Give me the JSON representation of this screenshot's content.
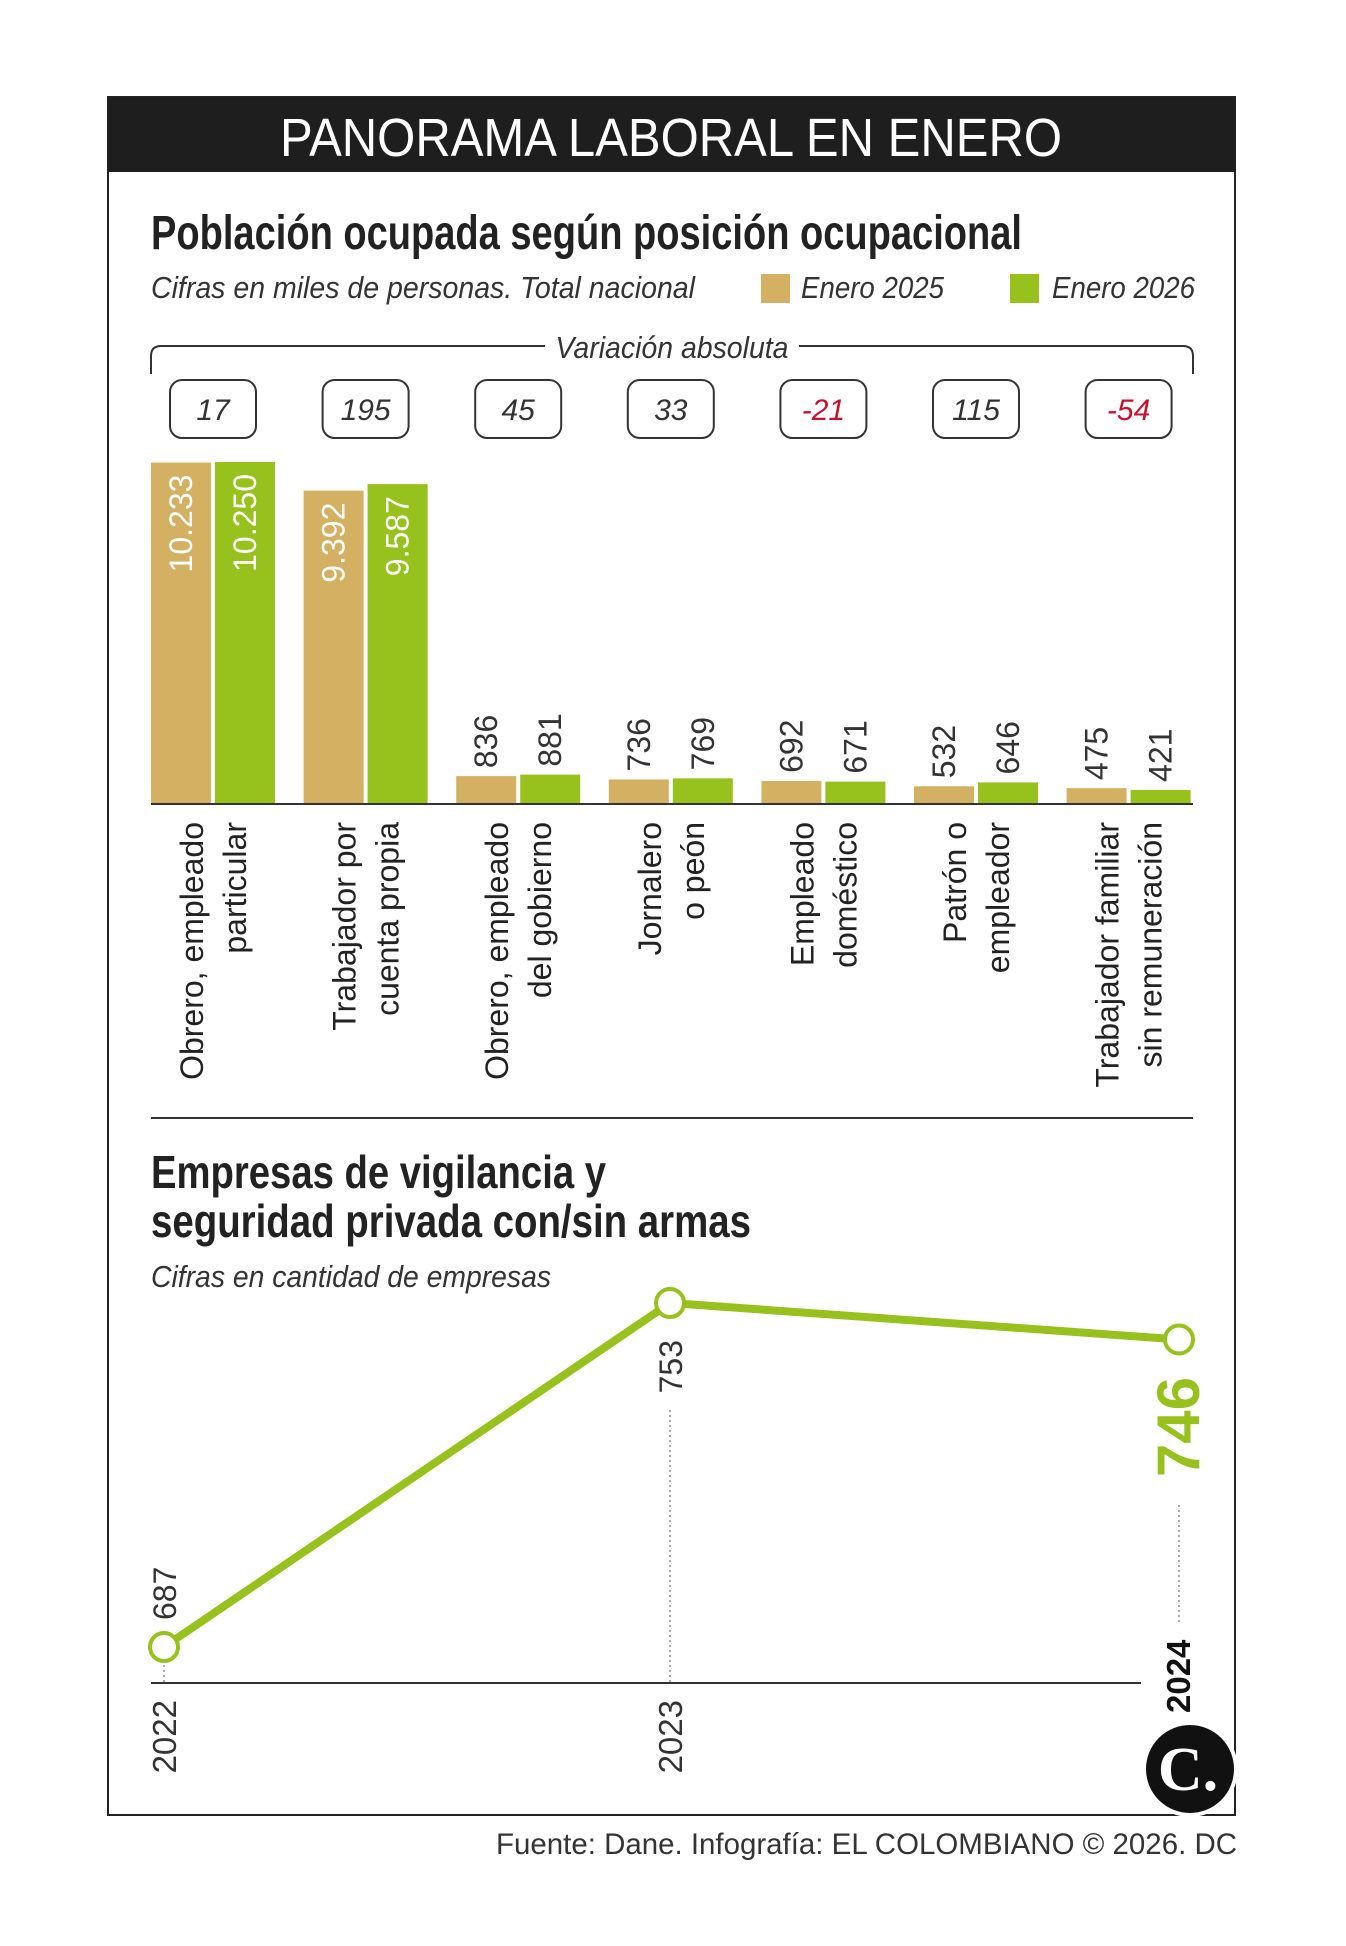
{
  "title": "PANORAMA LABORAL EN ENERO",
  "colors": {
    "enero_2025": "#d3b062",
    "enero_2026": "#97c21e",
    "negative": "#c8102e",
    "header_bg": "#1e1e1e"
  },
  "chart_data": [
    {
      "type": "bar",
      "title": "Población ocupada según posición ocupacional",
      "subtitle": "Cifras en miles de personas. Total nacional",
      "legend_position": "top-right",
      "variation_label": "Variación absoluta",
      "categories": [
        [
          "Obrero, empleado",
          "particular"
        ],
        [
          "Trabajador por",
          "cuenta propia"
        ],
        [
          "Obrero, empleado",
          "del gobierno"
        ],
        [
          "Jornalero",
          "o peón"
        ],
        [
          "Empleado",
          "doméstico"
        ],
        [
          "Patrón o",
          "empleador"
        ],
        [
          "Trabajador familiar",
          "sin remuneración"
        ]
      ],
      "series": [
        {
          "name": "Enero 2025",
          "values": [
            10233,
            9392,
            836,
            736,
            692,
            532,
            475
          ],
          "labels": [
            "10.233",
            "9.392",
            "836",
            "736",
            "692",
            "532",
            "475"
          ]
        },
        {
          "name": "Enero 2026",
          "values": [
            10250,
            9587,
            881,
            769,
            671,
            646,
            421
          ],
          "labels": [
            "10.250",
            "9.587",
            "881",
            "769",
            "671",
            "646",
            "421"
          ]
        }
      ],
      "variation": [
        "17",
        "195",
        "45",
        "33",
        "-21",
        "115",
        "-54"
      ]
    },
    {
      "type": "line",
      "title_lines": [
        "Empresas de vigilancia y",
        "seguridad privada con/sin armas"
      ],
      "subtitle": "Cifras en cantidad de empresas",
      "x": [
        "2022",
        "2023",
        "2024"
      ],
      "values": [
        687,
        753,
        746
      ],
      "labels": [
        "687",
        "753",
        "746"
      ]
    }
  ],
  "logo": {
    "text": "C."
  },
  "source": "Fuente: Dane. Infografía: EL COLOMBIANO © 2026. DC"
}
